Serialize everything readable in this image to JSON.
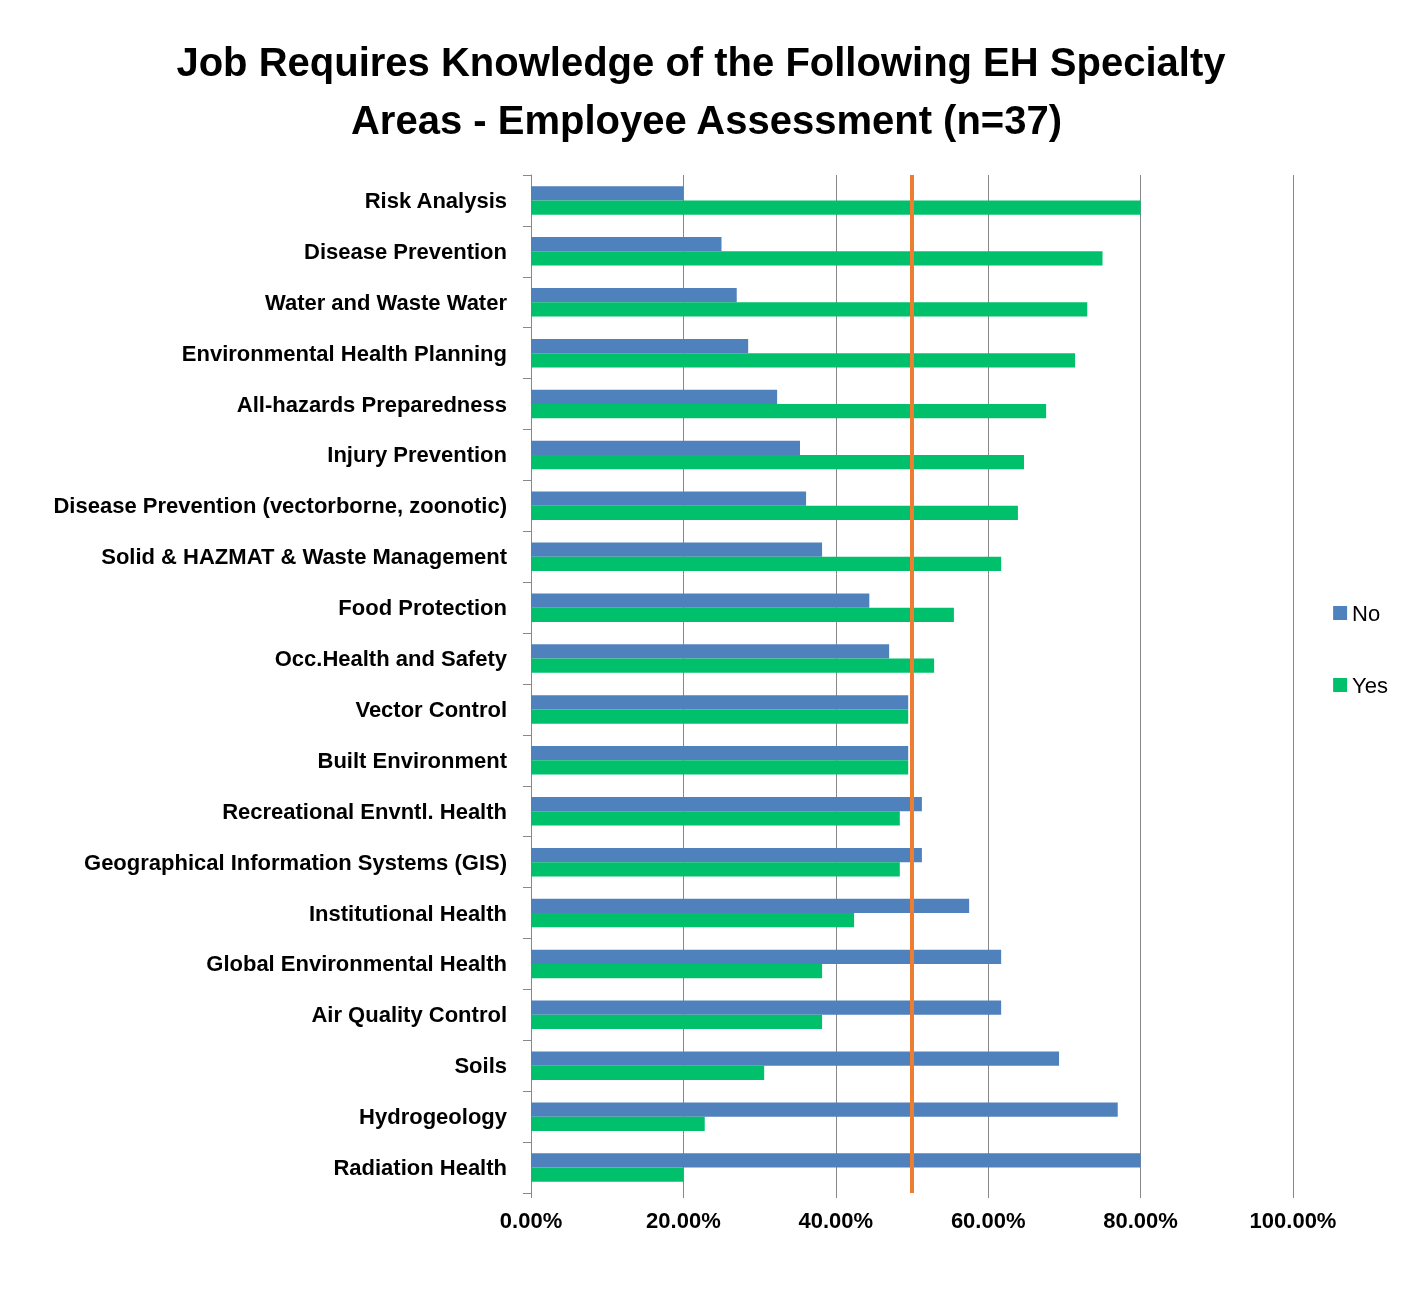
{
  "chart_data": {
    "type": "bar",
    "orientation": "horizontal",
    "title": "Job Requires Knowledge of the Following EH Specialty Areas - Employee Assessment (n=37)",
    "categories": [
      "Risk Analysis",
      "Disease Prevention",
      "Water and Waste Water",
      "Environmental Health Planning",
      "All-hazards Preparedness",
      "Injury Prevention",
      "Disease Prevention (vectorborne, zoonotic)",
      "Solid & HAZMAT & Waste Management",
      "Food Protection",
      "Occ.Health and Safety",
      "Vector Control",
      "Built Environment",
      "Recreational Envntl. Health",
      "Geographical Information Systems (GIS)",
      "Institutional Health",
      "Global Environmental Health",
      "Air Quality Control",
      "Soils",
      "Hydrogeology",
      "Radiation Health"
    ],
    "series": [
      {
        "name": "No",
        "color": "#4f81bd",
        "values": [
          20,
          25,
          27,
          28.5,
          32.3,
          35.3,
          36.1,
          38.2,
          44.4,
          47,
          49.5,
          49.5,
          51.3,
          51.3,
          57.5,
          61.7,
          61.7,
          69.3,
          77,
          80
        ]
      },
      {
        "name": "Yes",
        "color": "#00c06b",
        "values": [
          80,
          75,
          73,
          71.4,
          67.6,
          64.7,
          63.9,
          61.7,
          55.5,
          52.9,
          49.5,
          49.5,
          48.4,
          48.4,
          42.4,
          38.2,
          38.2,
          30.6,
          22.8,
          20
        ]
      }
    ],
    "xlim": [
      0,
      100
    ],
    "xticks": [
      {
        "value": 0,
        "label": "0.00%"
      },
      {
        "value": 20,
        "label": "20.00%"
      },
      {
        "value": 40,
        "label": "40.00%"
      },
      {
        "value": 60,
        "label": "60.00%"
      },
      {
        "value": 80,
        "label": "80.00%"
      },
      {
        "value": 100,
        "label": "100.00%"
      }
    ],
    "ref_lines": [
      {
        "axis": "x",
        "value": 50,
        "color": "#ed7d31"
      }
    ],
    "grid": "x",
    "legend": "right"
  }
}
